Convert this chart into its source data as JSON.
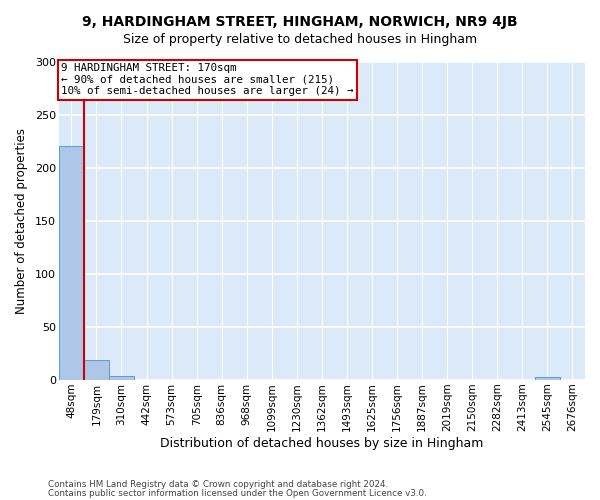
{
  "title": "9, HARDINGHAM STREET, HINGHAM, NORWICH, NR9 4JB",
  "subtitle": "Size of property relative to detached houses in Hingham",
  "xlabel": "Distribution of detached houses by size in Hingham",
  "ylabel": "Number of detached properties",
  "bin_labels": [
    "48sqm",
    "179sqm",
    "310sqm",
    "442sqm",
    "573sqm",
    "705sqm",
    "836sqm",
    "968sqm",
    "1099sqm",
    "1230sqm",
    "1362sqm",
    "1493sqm",
    "1625sqm",
    "1756sqm",
    "1887sqm",
    "2019sqm",
    "2150sqm",
    "2282sqm",
    "2413sqm",
    "2545sqm",
    "2676sqm"
  ],
  "bar_heights": [
    220,
    19,
    4,
    0,
    0,
    0,
    0,
    0,
    0,
    0,
    0,
    0,
    0,
    0,
    0,
    0,
    0,
    0,
    0,
    3,
    0
  ],
  "bar_color": "#aec6e8",
  "bar_edge_color": "#5b9bd5",
  "highlight_rect_color": "#cc0000",
  "annotation_lines": [
    "9 HARDINGHAM STREET: 170sqm",
    "← 90% of detached houses are smaller (215)",
    "10% of semi-detached houses are larger (24) →"
  ],
  "bg_color": "#dce9f8",
  "footer_line1": "Contains HM Land Registry data © Crown copyright and database right 2024.",
  "footer_line2": "Contains public sector information licensed under the Open Government Licence v3.0.",
  "ylim": [
    0,
    300
  ],
  "yticks": [
    0,
    50,
    100,
    150,
    200,
    250,
    300
  ],
  "title_fontsize": 10,
  "subtitle_fontsize": 9
}
